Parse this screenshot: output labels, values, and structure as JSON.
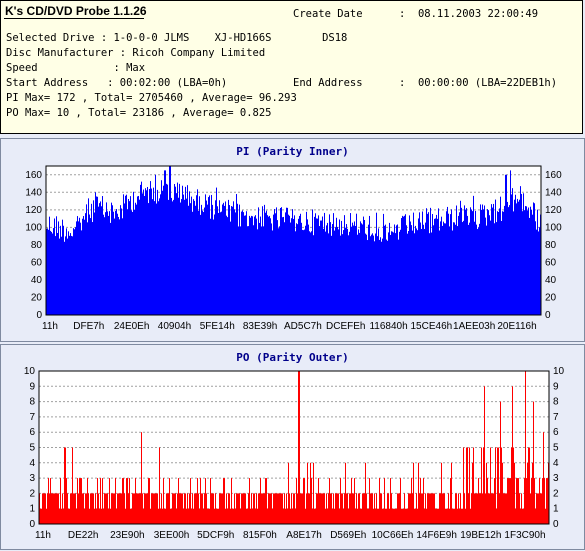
{
  "app_title": "K's CD/DVD Probe 1.1.26",
  "info": {
    "create_date_label": "Create Date",
    "create_date_value": ":  08.11.2003 22:00:49",
    "selected_drive": "Selected Drive : 1-0-0-0 JLMS    XJ-HD166S        DS18",
    "disc_manufacturer": "Disc Manufacturer : Ricoh Company Limited",
    "speed": "Speed            : Max",
    "start_address": "Start Address   : 00:02:00 (LBA=0h)",
    "end_address_label": "End Address",
    "end_address_value": ":  00:00:00 (LBA=22DEB1h)",
    "pi_stats": "PI Max= 172 , Total= 2705460 , Average= 96.293",
    "po_stats": "PO Max= 10 , Total= 23186 , Average= 0.825"
  },
  "colors": {
    "pi_fill": "#0000ff",
    "po_fill": "#ff0000",
    "grid": "#a0a0a0",
    "title": "#00008b",
    "plot_bg": "#ffffff"
  },
  "chart_data": [
    {
      "type": "bar",
      "title": "PI (Parity Inner)",
      "color": "#0000ff",
      "ylim": [
        0,
        170
      ],
      "yticks": [
        0,
        20,
        40,
        60,
        80,
        100,
        120,
        140,
        160
      ],
      "xtick_labels": [
        "11h",
        "DFE7h",
        "24E0Eh",
        "40904h",
        "5FE14h",
        "83E39h",
        "AD5C7h",
        "DCEFEh",
        "116840h",
        "15CE46h",
        "1AEE03h",
        "20E116h"
      ],
      "envelope_x": [
        0,
        0.02,
        0.04,
        0.06,
        0.08,
        0.1,
        0.12,
        0.14,
        0.16,
        0.18,
        0.2,
        0.22,
        0.24,
        0.26,
        0.28,
        0.3,
        0.32,
        0.34,
        0.36,
        0.38,
        0.4,
        0.42,
        0.44,
        0.46,
        0.48,
        0.5,
        0.52,
        0.54,
        0.56,
        0.58,
        0.6,
        0.62,
        0.64,
        0.66,
        0.68,
        0.7,
        0.72,
        0.74,
        0.76,
        0.78,
        0.8,
        0.82,
        0.84,
        0.86,
        0.88,
        0.9,
        0.92,
        0.94,
        0.96,
        0.98,
        1.0
      ],
      "envelope_y": [
        118,
        116,
        112,
        110,
        132,
        138,
        135,
        130,
        140,
        150,
        155,
        157,
        156,
        154,
        150,
        146,
        142,
        138,
        133,
        130,
        128,
        127,
        126,
        124,
        123,
        123,
        122,
        121,
        120,
        120,
        119,
        118,
        116,
        113,
        110,
        110,
        114,
        118,
        120,
        121,
        124,
        125,
        126,
        125,
        128,
        132,
        136,
        144,
        150,
        132,
        120
      ],
      "peak_values": [
        {
          "x": 0.1,
          "y": 140
        },
        {
          "x": 0.22,
          "y": 160
        },
        {
          "x": 0.24,
          "y": 165
        },
        {
          "x": 0.25,
          "y": 172
        },
        {
          "x": 0.93,
          "y": 160
        },
        {
          "x": 0.94,
          "y": 165
        }
      ]
    },
    {
      "type": "bar",
      "title": "PO (Parity Outer)",
      "color": "#ff0000",
      "ylim": [
        0,
        10
      ],
      "yticks": [
        0,
        1,
        2,
        3,
        4,
        5,
        6,
        7,
        8,
        9,
        10
      ],
      "xtick_labels": [
        "11h",
        "DE22h",
        "23E90h",
        "3EE00h",
        "5DCF9h",
        "815F0h",
        "A8E17h",
        "D569Eh",
        "10C66Eh",
        "14F6E9h",
        "19BE12h",
        "1F3C90h"
      ],
      "peak_values": [
        {
          "x": 0.05,
          "y": 5
        },
        {
          "x": 0.065,
          "y": 5
        },
        {
          "x": 0.12,
          "y": 3
        },
        {
          "x": 0.2,
          "y": 6
        },
        {
          "x": 0.235,
          "y": 5
        },
        {
          "x": 0.51,
          "y": 10
        },
        {
          "x": 0.57,
          "y": 3
        },
        {
          "x": 0.69,
          "y": 3
        },
        {
          "x": 0.745,
          "y": 4
        },
        {
          "x": 0.79,
          "y": 4
        },
        {
          "x": 0.84,
          "y": 5
        },
        {
          "x": 0.875,
          "y": 9
        },
        {
          "x": 0.905,
          "y": 8
        },
        {
          "x": 0.93,
          "y": 9
        },
        {
          "x": 0.955,
          "y": 10
        },
        {
          "x": 0.97,
          "y": 8
        },
        {
          "x": 0.99,
          "y": 6
        }
      ]
    }
  ]
}
